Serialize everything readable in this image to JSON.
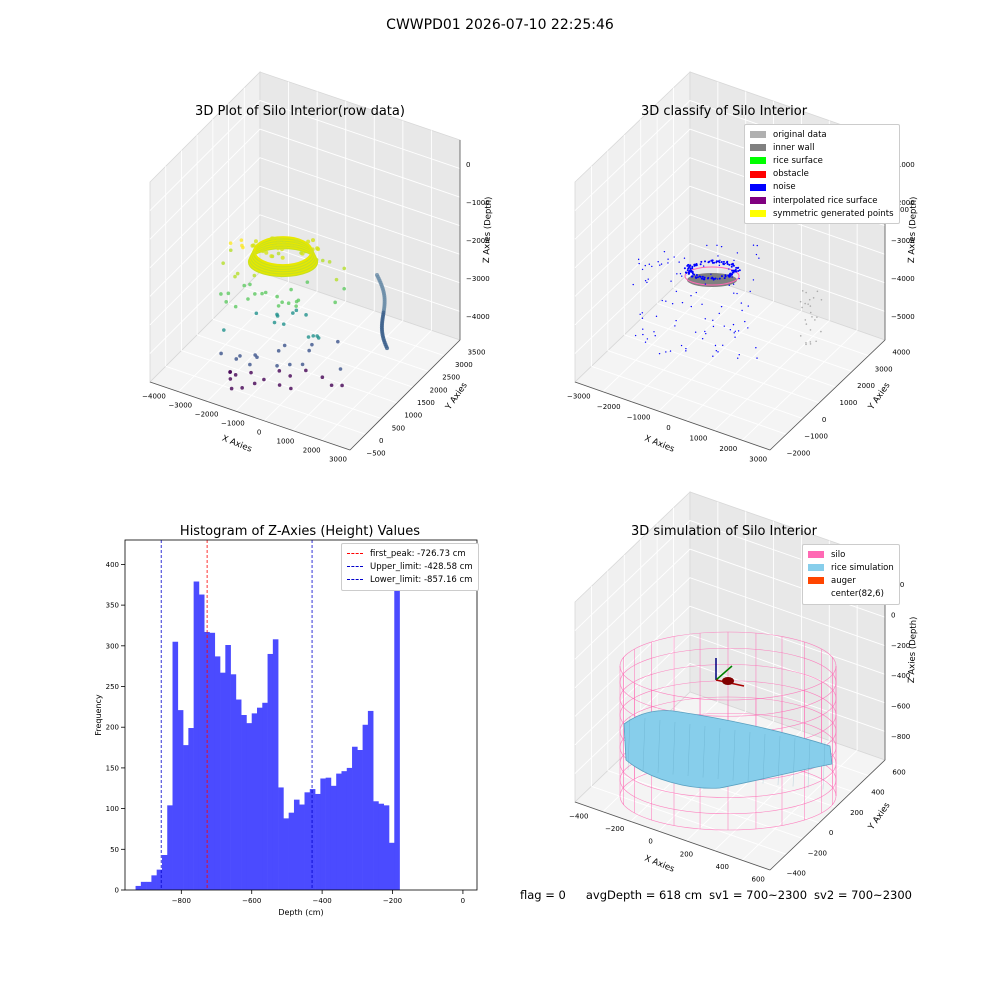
{
  "suptitle": "CWWPD01 2026-07-10 22:25:46",
  "status": {
    "flag": "flag = 0",
    "avg_depth": "avgDepth = 618 cm",
    "sv1": "sv1 = 700~2300",
    "sv2": "sv2 = 700~2300"
  },
  "colors": {
    "hist_bar": "#4b4bff",
    "peak_line": "#ff0000",
    "limit_line": "#0000cc",
    "silo": "#ff69b4",
    "rice_sim": "#87ceeb",
    "auger": "#ff4500"
  },
  "chart_data": [
    {
      "type": "scatter3d",
      "title": "3D Plot of Silo Interior(row data)",
      "xlabel": "X Axies",
      "ylabel": "Y Axies",
      "zlabel": "Z Axies (Depth)",
      "x_ticks": [
        "−4000",
        "−3000",
        "−2000",
        "−1000",
        "0",
        "1000",
        "2000",
        "3000"
      ],
      "y_ticks": [
        "−500",
        "0",
        "500",
        "1000",
        "1500",
        "2000",
        "2500",
        "3000",
        "3500"
      ],
      "z_ticks": [
        "−4000",
        "−3000",
        "−2000",
        "−1000",
        "0"
      ]
    },
    {
      "type": "scatter3d",
      "title": "3D classify of Silo Interior",
      "xlabel": "X Axies",
      "ylabel": "Y Axies",
      "zlabel": "Z Axies (Depth)",
      "x_ticks": [
        "−3000",
        "−2000",
        "−1000",
        "0",
        "1000",
        "2000",
        "3000"
      ],
      "y_ticks": [
        "−2000",
        "−1000",
        "0",
        "1000",
        "2000",
        "3000",
        "4000"
      ],
      "z_ticks": [
        "−5000",
        "−4000",
        "−3000",
        "−2000",
        "−1000"
      ],
      "z_tick_partial": "00",
      "legend": [
        {
          "label": "original data",
          "color": "#b0b0b0"
        },
        {
          "label": "inner wall",
          "color": "#808080"
        },
        {
          "label": "rice surface",
          "color": "#00ff00"
        },
        {
          "label": "obstacle",
          "color": "#ff0000"
        },
        {
          "label": "noise",
          "color": "#0000ff"
        },
        {
          "label": "interpolated rice surface",
          "color": "#800080"
        },
        {
          "label": "symmetric generated points",
          "color": "#ffff00"
        }
      ]
    },
    {
      "type": "bar",
      "title": "Histogram of Z-Axies (Height) Values",
      "xlabel": "Depth (cm)",
      "ylabel": "Frequency",
      "xlim": [
        -960,
        40
      ],
      "ylim": [
        0,
        430
      ],
      "bin_start": -930,
      "bin_width": 15,
      "values": [
        5,
        10,
        10,
        18,
        25,
        43,
        104,
        305,
        221,
        178,
        199,
        379,
        363,
        317,
        316,
        287,
        267,
        301,
        265,
        234,
        215,
        205,
        217,
        224,
        230,
        290,
        308,
        126,
        88,
        95,
        111,
        105,
        120,
        124,
        118,
        137,
        138,
        128,
        143,
        146,
        150,
        176,
        172,
        203,
        220,
        109,
        106,
        104,
        58,
        412
      ],
      "x_ticks": [
        -800,
        -600,
        -400,
        -200,
        0
      ],
      "x_tick_labels": [
        "−800",
        "−600",
        "−400",
        "−200",
        "0"
      ],
      "y_ticks": [
        0,
        50,
        100,
        150,
        200,
        250,
        300,
        350,
        400
      ],
      "vlines": [
        {
          "name": "first_peak: -726.73 cm",
          "x": -726.73,
          "color": "#ff0000"
        },
        {
          "name": "Upper_limit: -428.58 cm",
          "x": -428.58,
          "color": "#0000cc"
        },
        {
          "name": "Lower_limit: -857.16 cm",
          "x": -857.16,
          "color": "#0000cc"
        }
      ]
    },
    {
      "type": "surface3d",
      "title": "3D simulation of Silo Interior",
      "xlabel": "X Axies",
      "ylabel": "Y Axies",
      "zlabel": "Z Axies (Depth)",
      "x_ticks": [
        "−400",
        "−200",
        "0",
        "200",
        "400",
        "600"
      ],
      "y_ticks": [
        "−400",
        "−200",
        "0",
        "200",
        "400",
        "600"
      ],
      "z_ticks": [
        "−800",
        "−600",
        "−400",
        "−200",
        "0",
        "200"
      ],
      "legend": [
        {
          "label": "silo",
          "color": "#ff69b4"
        },
        {
          "label": "rice simulation",
          "color": "#87ceeb"
        },
        {
          "label": "auger",
          "color": "#ff4500"
        },
        {
          "label": "center(82,6)",
          "color": "#ffffff"
        }
      ]
    }
  ]
}
